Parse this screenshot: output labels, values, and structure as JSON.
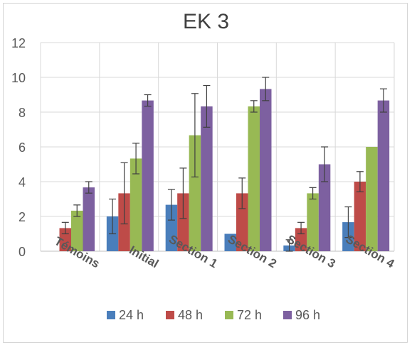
{
  "chart_data": {
    "type": "bar",
    "title": "EK 3",
    "categories": [
      "Témoins",
      "Initial",
      "Section 1",
      "Section 2",
      "Section 3",
      "Section 4"
    ],
    "ylim": [
      0,
      12
    ],
    "yticks": [
      0,
      2,
      4,
      6,
      8,
      10,
      12
    ],
    "grid": true,
    "legend_position": "bottom",
    "series": [
      {
        "name": "24 h",
        "color": "#4a7ebb",
        "values": [
          0,
          2.0,
          2.67,
          1.0,
          0.33,
          1.67
        ],
        "errors": [
          0,
          1.0,
          0.88,
          0,
          0.33,
          0.88
        ]
      },
      {
        "name": "48 h",
        "color": "#be4b48",
        "values": [
          1.33,
          3.33,
          3.33,
          3.33,
          1.33,
          4.0
        ],
        "errors": [
          0.33,
          1.76,
          1.45,
          0.88,
          0.33,
          0.58
        ]
      },
      {
        "name": "72 h",
        "color": "#98b954",
        "values": [
          2.33,
          5.33,
          6.67,
          8.33,
          3.33,
          6.0
        ],
        "errors": [
          0.33,
          0.88,
          2.4,
          0.33,
          0.33,
          0
        ]
      },
      {
        "name": "96 h",
        "color": "#7d60a0",
        "values": [
          3.67,
          8.67,
          8.33,
          9.33,
          5.0,
          8.67
        ],
        "errors": [
          0.33,
          0.33,
          1.2,
          0.67,
          1.0,
          0.67
        ]
      }
    ]
  }
}
